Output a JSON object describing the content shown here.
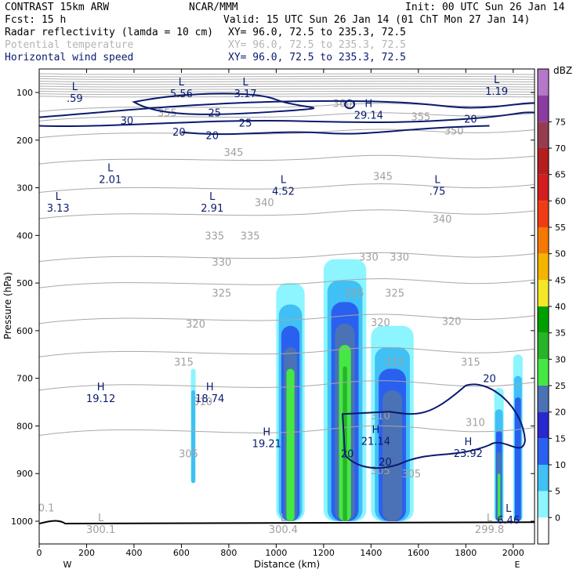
{
  "header": {
    "title_left": "CONTRAST 15km ARW",
    "title_center": "NCAR/MMM",
    "init": "Init: 00 UTC Sun 26 Jan 14",
    "fcst_label": "Fcst:   15 h",
    "valid": "Valid: 15 UTC Sun 26 Jan 14 (01 ChT Mon 27 Jan 14)",
    "fields": [
      {
        "name": "Radar reflectivity (lamda = 10 cm)",
        "xy": "XY=  96.0, 72.5 to 235.3, 72.5",
        "color": "#000000"
      },
      {
        "name": "Potential temperature",
        "xy": "XY=  96.0, 72.5 to 235.3, 72.5",
        "color": "#b4b4b4"
      },
      {
        "name": "Horizontal wind speed",
        "xy": "XY=  96.0, 72.5 to 235.3, 72.5",
        "color": "#0a1a6e"
      }
    ]
  },
  "colorbar": {
    "unit": "dBZ",
    "levels": [
      "0",
      "5",
      "10",
      "15",
      "20",
      "25",
      "30",
      "35",
      "40",
      "45",
      "50",
      "55",
      "60",
      "65",
      "70",
      "75"
    ],
    "colors": [
      "#ffffff",
      "#8cf5ff",
      "#40c0f5",
      "#2a60f0",
      "#2828d0",
      "#4a72b4",
      "#44e844",
      "#28b428",
      "#00a000",
      "#f5e628",
      "#f5b400",
      "#f57800",
      "#f03c14",
      "#d21e1e",
      "#b41e1e",
      "#963c50",
      "#8c3ca0",
      "#b478c8"
    ]
  },
  "chart_data": {
    "type": "heatmap",
    "xlabel": "Distance (km)",
    "ylabel": "Pressure (hPa)",
    "xlim": [
      0,
      2090
    ],
    "ylim": [
      1050,
      50
    ],
    "x_ticks": [
      "0",
      "200",
      "400",
      "600",
      "800",
      "1000",
      "1200",
      "1400",
      "1600",
      "1800",
      "2000"
    ],
    "y_ticks": [
      "100",
      "200",
      "300",
      "400",
      "500",
      "600",
      "700",
      "800",
      "900",
      "1000"
    ],
    "x_end_labels": {
      "left": "W",
      "right": "E"
    },
    "reflectivity_cells": [
      {
        "x0": 640,
        "x1": 660,
        "p_top": 680,
        "p_bot": 920,
        "dbz": 5
      },
      {
        "x0": 1000,
        "x1": 1120,
        "p_top": 500,
        "p_bot": 1000,
        "dbz": 20
      },
      {
        "x0": 1200,
        "x1": 1380,
        "p_top": 450,
        "p_bot": 1000,
        "dbz": 25
      },
      {
        "x0": 1400,
        "x1": 1580,
        "p_top": 590,
        "p_bot": 1000,
        "dbz": 15
      },
      {
        "x0": 1920,
        "x1": 1960,
        "p_top": 720,
        "p_bot": 1000,
        "dbz": 20
      },
      {
        "x0": 2000,
        "x1": 2040,
        "p_top": 650,
        "p_bot": 1000,
        "dbz": 10
      }
    ],
    "theta_contour_labels": [
      "360",
      "355",
      "350",
      "345",
      "340",
      "335",
      "330",
      "325",
      "320",
      "315",
      "310",
      "305"
    ],
    "wind_contour_labels": [
      "20",
      "25",
      "30"
    ],
    "centers": [
      {
        "type": "L",
        "value": ".59",
        "x": 150,
        "p": 105,
        "color": "blue"
      },
      {
        "type": "L",
        "value": "5.56",
        "x": 600,
        "p": 95,
        "color": "blue"
      },
      {
        "type": "L",
        "value": "3.17",
        "x": 870,
        "p": 95,
        "color": "blue"
      },
      {
        "type": "H",
        "value": "29.14",
        "x": 1390,
        "p": 140,
        "color": "blue"
      },
      {
        "type": "L",
        "value": "1.19",
        "x": 1930,
        "p": 90,
        "color": "blue"
      },
      {
        "type": "L",
        "value": "2.01",
        "x": 300,
        "p": 275,
        "color": "blue"
      },
      {
        "type": "L",
        "value": "3.13",
        "x": 80,
        "p": 335,
        "color": "blue"
      },
      {
        "type": "L",
        "value": "2.91",
        "x": 730,
        "p": 335,
        "color": "blue"
      },
      {
        "type": "L",
        "value": "4.52",
        "x": 1030,
        "p": 300,
        "color": "blue"
      },
      {
        "type": "L",
        "value": ".75",
        "x": 1680,
        "p": 300,
        "color": "blue"
      },
      {
        "type": "H",
        "value": "19.12",
        "x": 260,
        "p": 735,
        "color": "blue"
      },
      {
        "type": "H",
        "value": "18.74",
        "x": 720,
        "p": 735,
        "color": "blue"
      },
      {
        "type": "H",
        "value": "19.21",
        "x": 960,
        "p": 830,
        "color": "blue"
      },
      {
        "type": "H",
        "value": "21.14",
        "x": 1420,
        "p": 825,
        "color": "blue"
      },
      {
        "type": "H",
        "value": "23.92",
        "x": 1810,
        "p": 850,
        "color": "blue"
      },
      {
        "type": "L",
        "value": "6.46",
        "x": 1980,
        "p": 990,
        "color": "blue"
      },
      {
        "type": "L",
        "value": "300.1",
        "x": 260,
        "p": 1010,
        "color": "gray"
      },
      {
        "type": "L",
        "value": "300.4",
        "x": 1030,
        "p": 1010,
        "color": "gray"
      },
      {
        "type": "L",
        "value": "299.8",
        "x": 1900,
        "p": 1010,
        "color": "gray"
      },
      {
        "type": "",
        "value": "0.1",
        "x": 30,
        "p": 965,
        "color": "gray"
      }
    ]
  }
}
